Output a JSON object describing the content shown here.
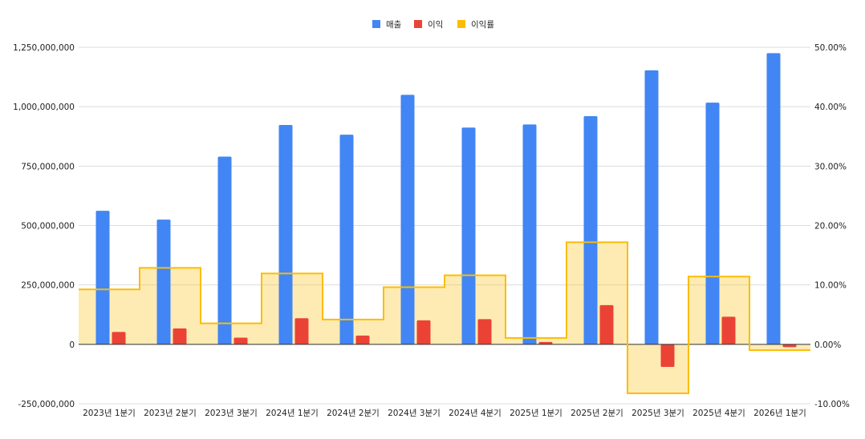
{
  "chart_data": {
    "type": "bar",
    "categories": [
      "2023년 1분기",
      "2023년 2분기",
      "2023년 3분기",
      "2024년 1분기",
      "2024년 2분기",
      "2024년 3분기",
      "2024년 4분기",
      "2025년 1분기",
      "2025년 2분기",
      "2025년 3분기",
      "2025년 4분기",
      "2026년 1분기"
    ],
    "series": [
      {
        "name": "매출",
        "type": "bar",
        "axis": "left",
        "color": "#4285F4",
        "values": [
          562000000,
          525000000,
          790000000,
          923000000,
          882000000,
          1050000000,
          912000000,
          925000000,
          960000000,
          1153000000,
          1017000000,
          1225000000
        ]
      },
      {
        "name": "이익",
        "type": "bar",
        "axis": "left",
        "color": "#EA4335",
        "values": [
          52000000,
          67000000,
          28000000,
          110000000,
          37000000,
          101000000,
          106000000,
          10000000,
          165000000,
          -95000000,
          116000000,
          -12000000
        ]
      },
      {
        "name": "이익률",
        "type": "stepped-area",
        "axis": "right",
        "color": "#FBBC04",
        "values": [
          0.0925,
          0.1287,
          0.0354,
          0.1192,
          0.0417,
          0.0962,
          0.1162,
          0.0108,
          0.1719,
          -0.0824,
          0.1141,
          -0.0098
        ]
      }
    ],
    "left_axis": {
      "ylim": [
        -250000000,
        1250000000
      ],
      "ticks": [
        -250000000,
        0,
        250000000,
        500000000,
        750000000,
        1000000000,
        1250000000
      ],
      "tick_labels": [
        "-250,000,000",
        "0",
        "250,000,000",
        "500,000,000",
        "750,000,000",
        "1,000,000,000",
        "1,250,000,000"
      ]
    },
    "right_axis": {
      "ylim": [
        -0.1,
        0.5
      ],
      "ticks": [
        -0.1,
        0,
        0.1,
        0.2,
        0.3,
        0.4,
        0.5
      ],
      "tick_labels": [
        "-10.00%",
        "0.00%",
        "10.00%",
        "20.00%",
        "30.00%",
        "40.00%",
        "50.00%"
      ]
    },
    "legend_position": "top-center",
    "grid": true
  }
}
